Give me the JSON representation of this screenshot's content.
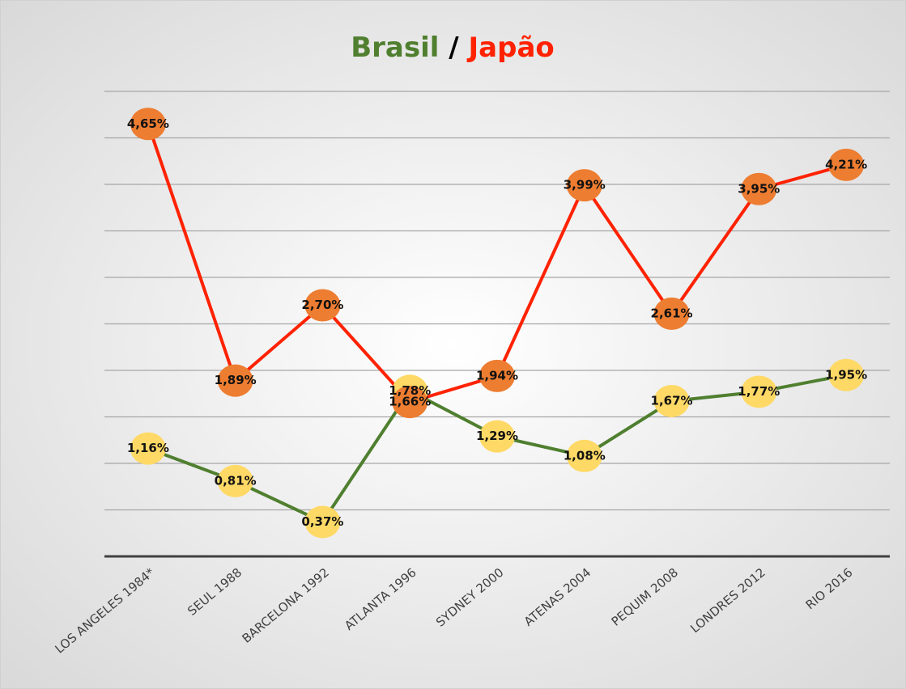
{
  "chart_data": {
    "type": "line",
    "title_separator": "/",
    "categories": [
      "LOS ANGELES 1984*",
      "SEUL 1988",
      "BARCELONA 1992",
      "ATLANTA 1996",
      "SYDNEY 2000",
      "ATENAS 2004",
      "PEQUIM 2008",
      "LONDRES 2012",
      "RIO 2016"
    ],
    "series": [
      {
        "name": "Brasil",
        "color": "#4f7f2f",
        "marker_color": "#ffd966",
        "values": [
          1.16,
          0.81,
          0.37,
          1.78,
          1.29,
          1.08,
          1.67,
          1.77,
          1.95
        ],
        "value_labels": [
          "1,16%",
          "0,81%",
          "0,37%",
          "1,78%",
          "1,29%",
          "1,08%",
          "1,67%",
          "1,77%",
          "1,95%"
        ]
      },
      {
        "name": "Japão",
        "color": "#ff2200",
        "marker_color": "#ed7d31",
        "values": [
          4.65,
          1.89,
          2.7,
          1.66,
          1.94,
          3.99,
          2.61,
          3.95,
          4.21
        ],
        "value_labels": [
          "4,65%",
          "1,89%",
          "2,70%",
          "1,66%",
          "1,94%",
          "3,99%",
          "2,61%",
          "3,95%",
          "4,21%"
        ]
      }
    ],
    "ylim": [
      0,
      5
    ],
    "yticks": [
      0,
      0.5,
      1,
      1.5,
      2,
      2.5,
      3,
      3.5,
      4,
      4.5,
      5
    ],
    "grid": true
  }
}
